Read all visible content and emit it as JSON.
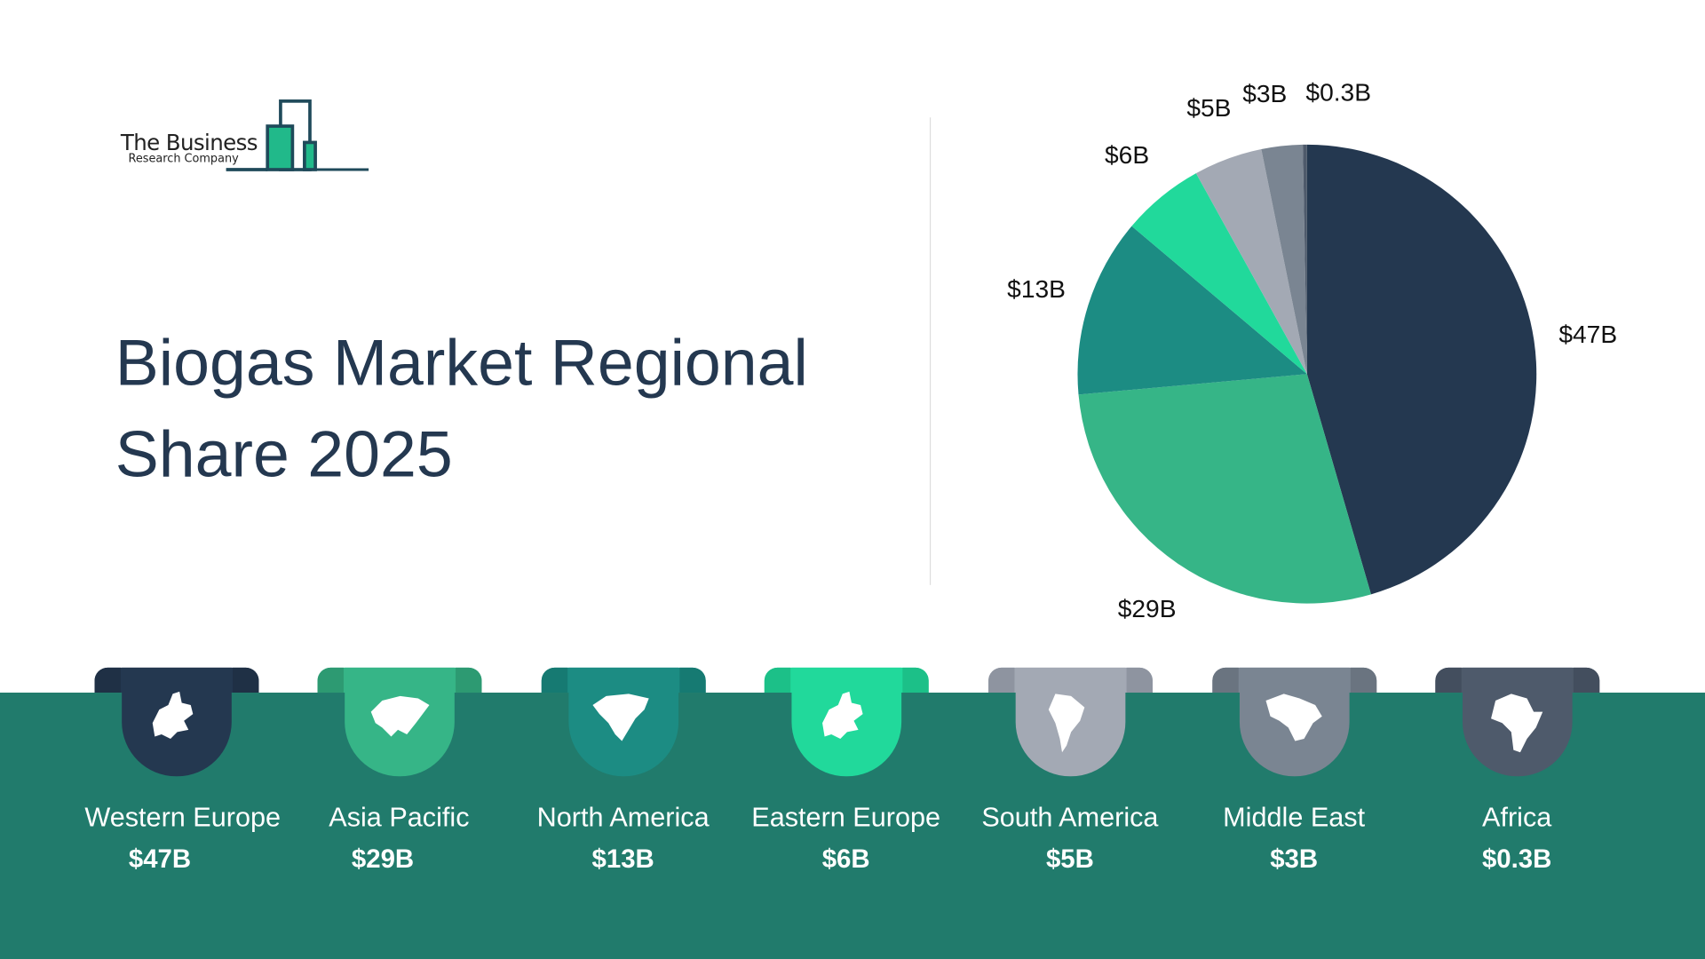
{
  "logo": {
    "line1": "The Business",
    "line2": "Research Company"
  },
  "title": "Biogas Market Regional Share 2025",
  "chart_data": {
    "type": "pie",
    "title": "Biogas Market Regional Share 2025",
    "unit": "$B",
    "start": "top, clockwise",
    "categories": [
      "Western Europe",
      "Asia Pacific",
      "North America",
      "Eastern Europe",
      "South America",
      "Middle East",
      "Africa"
    ],
    "values": [
      47,
      29,
      13,
      6,
      5,
      3,
      0.3
    ],
    "labels": [
      "$47B",
      "$29B",
      "$13B",
      "$6B",
      "$5B",
      "$3B",
      "$0.3B"
    ],
    "colors": [
      "#243850",
      "#36b587",
      "#1c8c83",
      "#21d99b",
      "#a3a9b4",
      "#7a8592",
      "#4e5a6b"
    ],
    "ear_colors": [
      "#1f3045",
      "#2d9a72",
      "#167a72",
      "#1cc088",
      "#8e94a0",
      "#6a7480",
      "#434e5e"
    ]
  },
  "regions": [
    {
      "name": "Western Europe",
      "value": "$47B",
      "icon": "europe-map-icon"
    },
    {
      "name": "Asia Pacific",
      "value": "$29B",
      "icon": "asia-map-icon"
    },
    {
      "name": "North America",
      "value": "$13B",
      "icon": "north-america-map-icon"
    },
    {
      "name": "Eastern Europe",
      "value": "$6B",
      "icon": "europe-map-icon"
    },
    {
      "name": "South America",
      "value": "$5B",
      "icon": "south-america-map-icon"
    },
    {
      "name": "Middle East",
      "value": "$3B",
      "icon": "middle-east-map-icon"
    },
    {
      "name": "Africa",
      "value": "$0.3B",
      "icon": "africa-map-icon"
    }
  ]
}
